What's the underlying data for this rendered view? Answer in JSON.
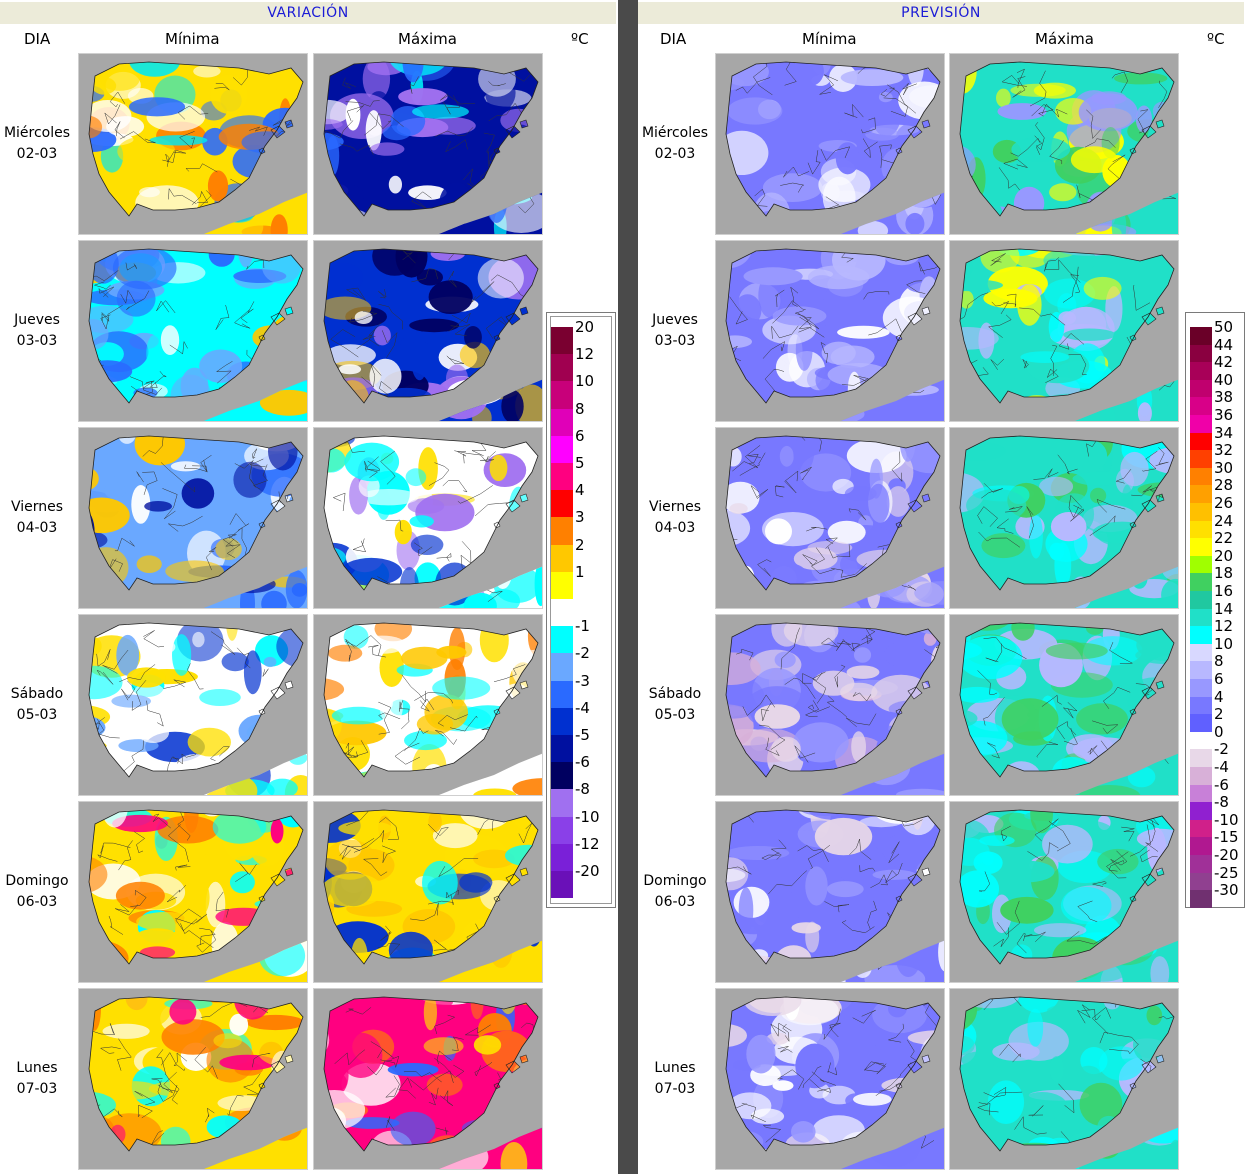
{
  "variacion": {
    "title": "VARIACIÓN",
    "col_dia": "DIA",
    "col_min": "Mínima",
    "col_max": "Máxima",
    "unit": "ºC"
  },
  "prevision": {
    "title": "PREVISIÓN",
    "col_dia": "DIA",
    "col_min": "Mínima",
    "col_max": "Máxima",
    "unit": "ºC"
  },
  "days": [
    {
      "name": "Miércoles",
      "date": "02-03"
    },
    {
      "name": "Jueves",
      "date": "03-03"
    },
    {
      "name": "Viernes",
      "date": "04-03"
    },
    {
      "name": "Sábado",
      "date": "05-03"
    },
    {
      "name": "Domingo",
      "date": "06-03"
    },
    {
      "name": "Lunes",
      "date": "07-03"
    }
  ],
  "variacion_legend": [
    {
      "label": "20",
      "color": "#7a0030"
    },
    {
      "label": "12",
      "color": "#a00050"
    },
    {
      "label": "10",
      "color": "#c8007a"
    },
    {
      "label": "8",
      "color": "#e000b8"
    },
    {
      "label": "6",
      "color": "#ff00ff"
    },
    {
      "label": "5",
      "color": "#ff0080"
    },
    {
      "label": "4",
      "color": "#ff0000"
    },
    {
      "label": "3",
      "color": "#ff8000"
    },
    {
      "label": "2",
      "color": "#ffc800"
    },
    {
      "label": "1",
      "color": "#ffff00"
    },
    {
      "label": "",
      "color": "#ffffff"
    },
    {
      "label": "-1",
      "color": "#00ffff"
    },
    {
      "label": "-2",
      "color": "#6aa8ff"
    },
    {
      "label": "-3",
      "color": "#2a6aff"
    },
    {
      "label": "-4",
      "color": "#0030d0"
    },
    {
      "label": "-5",
      "color": "#0010a0"
    },
    {
      "label": "-6",
      "color": "#000060"
    },
    {
      "label": "-8",
      "color": "#a070f0"
    },
    {
      "label": "-10",
      "color": "#8a40e8"
    },
    {
      "label": "-12",
      "color": "#7a20d8"
    },
    {
      "label": "-20",
      "color": "#6a10b8"
    }
  ],
  "prevision_legend": [
    {
      "label": "50",
      "color": "#6a0028"
    },
    {
      "label": "44",
      "color": "#8a0040"
    },
    {
      "label": "42",
      "color": "#a80058"
    },
    {
      "label": "40",
      "color": "#c0006e"
    },
    {
      "label": "38",
      "color": "#d80088"
    },
    {
      "label": "36",
      "color": "#f000a8"
    },
    {
      "label": "34",
      "color": "#ff0000"
    },
    {
      "label": "32",
      "color": "#ff4000"
    },
    {
      "label": "30",
      "color": "#ff8000"
    },
    {
      "label": "28",
      "color": "#ffa000"
    },
    {
      "label": "26",
      "color": "#ffc000"
    },
    {
      "label": "24",
      "color": "#ffe000"
    },
    {
      "label": "22",
      "color": "#ffff00"
    },
    {
      "label": "20",
      "color": "#a0ff00"
    },
    {
      "label": "18",
      "color": "#40d060"
    },
    {
      "label": "16",
      "color": "#20c8a0"
    },
    {
      "label": "14",
      "color": "#20e0c8"
    },
    {
      "label": "12",
      "color": "#00ffff"
    },
    {
      "label": "10",
      "color": "#d8d8ff"
    },
    {
      "label": "8",
      "color": "#b8b8ff"
    },
    {
      "label": "6",
      "color": "#9898ff"
    },
    {
      "label": "4",
      "color": "#7878ff"
    },
    {
      "label": "2",
      "color": "#6060ff"
    },
    {
      "label": "0",
      "color": "#ffffff"
    },
    {
      "label": "-2",
      "color": "#e8d8e8"
    },
    {
      "label": "-4",
      "color": "#d8b0d8"
    },
    {
      "label": "-6",
      "color": "#c880d8"
    },
    {
      "label": "-8",
      "color": "#9020d0"
    },
    {
      "label": "-10",
      "color": "#d0208a"
    },
    {
      "label": "-15",
      "color": "#b01890"
    },
    {
      "label": "-20",
      "color": "#a03098"
    },
    {
      "label": "-25",
      "color": "#904090"
    },
    {
      "label": "-30",
      "color": "#703070"
    }
  ]
}
